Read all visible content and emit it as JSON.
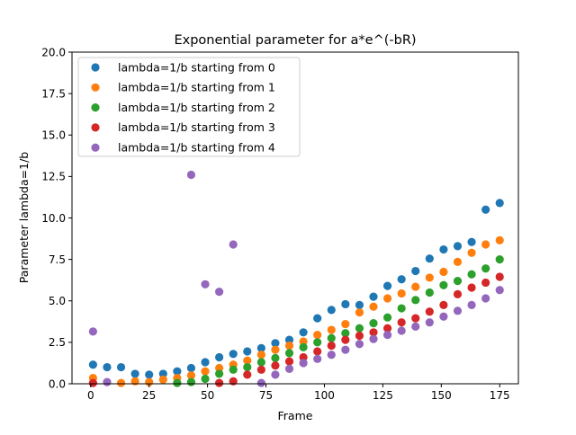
{
  "chart_data": {
    "type": "scatter",
    "title": "Exponential parameter for a*e^(-bR)",
    "xlabel": "Frame",
    "ylabel": "Parameter lambda=1/b",
    "xlim": [
      -8,
      183
    ],
    "ylim": [
      0,
      20
    ],
    "xticks": [
      0,
      25,
      50,
      75,
      100,
      125,
      150,
      175
    ],
    "xtick_labels": [
      "0",
      "25",
      "50",
      "75",
      "100",
      "125",
      "150",
      "175"
    ],
    "yticks": [
      0,
      2.5,
      5,
      7.5,
      10,
      12.5,
      15,
      17.5,
      20
    ],
    "ytick_labels": [
      "0.0",
      "2.5",
      "5.0",
      "7.5",
      "10.0",
      "12.5",
      "15.0",
      "17.5",
      "20.0"
    ],
    "grid": false,
    "legend_position": "top-left",
    "series": [
      {
        "name": "lambda=1/b starting from 0",
        "color": "#1f77b4",
        "points": [
          [
            1,
            1.15
          ],
          [
            7,
            1.0
          ],
          [
            13,
            1.0
          ],
          [
            19,
            0.6
          ],
          [
            25,
            0.55
          ],
          [
            31,
            0.6
          ],
          [
            37,
            0.75
          ],
          [
            43,
            0.95
          ],
          [
            49,
            1.3
          ],
          [
            55,
            1.6
          ],
          [
            61,
            1.8
          ],
          [
            67,
            1.95
          ],
          [
            73,
            2.15
          ],
          [
            79,
            2.45
          ],
          [
            85,
            2.65
          ],
          [
            91,
            3.1
          ],
          [
            97,
            3.95
          ],
          [
            103,
            4.45
          ],
          [
            109,
            4.8
          ],
          [
            115,
            4.75
          ],
          [
            121,
            5.25
          ],
          [
            127,
            5.9
          ],
          [
            133,
            6.3
          ],
          [
            139,
            6.8
          ],
          [
            145,
            7.55
          ],
          [
            151,
            8.1
          ],
          [
            157,
            8.3
          ],
          [
            163,
            8.55
          ],
          [
            169,
            10.5
          ],
          [
            175,
            10.9
          ]
        ]
      },
      {
        "name": "lambda=1/b starting from 1",
        "color": "#ff7f0e",
        "points": [
          [
            1,
            0.35
          ],
          [
            13,
            0.05
          ],
          [
            19,
            0.15
          ],
          [
            25,
            0.1
          ],
          [
            31,
            0.25
          ],
          [
            37,
            0.35
          ],
          [
            43,
            0.5
          ],
          [
            49,
            0.75
          ],
          [
            55,
            0.95
          ],
          [
            61,
            1.15
          ],
          [
            67,
            1.4
          ],
          [
            73,
            1.75
          ],
          [
            79,
            2.05
          ],
          [
            85,
            2.3
          ],
          [
            91,
            2.55
          ],
          [
            97,
            2.95
          ],
          [
            103,
            3.25
          ],
          [
            109,
            3.6
          ],
          [
            115,
            4.3
          ],
          [
            121,
            4.65
          ],
          [
            127,
            5.15
          ],
          [
            133,
            5.45
          ],
          [
            139,
            5.85
          ],
          [
            145,
            6.4
          ],
          [
            151,
            6.75
          ],
          [
            157,
            7.35
          ],
          [
            163,
            7.9
          ],
          [
            169,
            8.4
          ],
          [
            175,
            8.65
          ]
        ]
      },
      {
        "name": "lambda=1/b starting from 2",
        "color": "#2ca02c",
        "points": [
          [
            37,
            0.05
          ],
          [
            43,
            0.1
          ],
          [
            49,
            0.3
          ],
          [
            55,
            0.6
          ],
          [
            61,
            0.85
          ],
          [
            67,
            1.0
          ],
          [
            73,
            1.3
          ],
          [
            79,
            1.55
          ],
          [
            85,
            1.85
          ],
          [
            91,
            2.2
          ],
          [
            97,
            2.5
          ],
          [
            103,
            2.75
          ],
          [
            109,
            3.05
          ],
          [
            115,
            3.35
          ],
          [
            121,
            3.65
          ],
          [
            127,
            4.0
          ],
          [
            133,
            4.55
          ],
          [
            139,
            5.05
          ],
          [
            145,
            5.5
          ],
          [
            151,
            5.95
          ],
          [
            157,
            6.2
          ],
          [
            163,
            6.6
          ],
          [
            169,
            6.95
          ],
          [
            175,
            7.5
          ]
        ]
      },
      {
        "name": "lambda=1/b starting from 3",
        "color": "#d62728",
        "points": [
          [
            1,
            0.05
          ],
          [
            55,
            0.05
          ],
          [
            61,
            0.15
          ],
          [
            67,
            0.55
          ],
          [
            73,
            0.85
          ],
          [
            79,
            1.1
          ],
          [
            85,
            1.35
          ],
          [
            91,
            1.6
          ],
          [
            97,
            1.95
          ],
          [
            103,
            2.3
          ],
          [
            109,
            2.65
          ],
          [
            115,
            2.9
          ],
          [
            121,
            3.1
          ],
          [
            127,
            3.35
          ],
          [
            133,
            3.7
          ],
          [
            139,
            3.95
          ],
          [
            145,
            4.35
          ],
          [
            151,
            4.75
          ],
          [
            157,
            5.4
          ],
          [
            163,
            5.8
          ],
          [
            169,
            6.1
          ],
          [
            175,
            6.45
          ]
        ]
      },
      {
        "name": "lambda=1/b starting from 4",
        "color": "#9467bd",
        "points": [
          [
            1,
            3.15
          ],
          [
            7,
            0.1
          ],
          [
            43,
            12.6
          ],
          [
            49,
            6.0
          ],
          [
            55,
            5.55
          ],
          [
            61,
            8.4
          ],
          [
            73,
            0.05
          ],
          [
            79,
            0.55
          ],
          [
            85,
            0.9
          ],
          [
            91,
            1.25
          ],
          [
            97,
            1.5
          ],
          [
            103,
            1.75
          ],
          [
            109,
            2.05
          ],
          [
            115,
            2.4
          ],
          [
            121,
            2.7
          ],
          [
            127,
            2.95
          ],
          [
            133,
            3.2
          ],
          [
            139,
            3.45
          ],
          [
            145,
            3.7
          ],
          [
            151,
            4.05
          ],
          [
            157,
            4.4
          ],
          [
            163,
            4.75
          ],
          [
            169,
            5.15
          ],
          [
            175,
            5.65
          ]
        ]
      }
    ]
  }
}
